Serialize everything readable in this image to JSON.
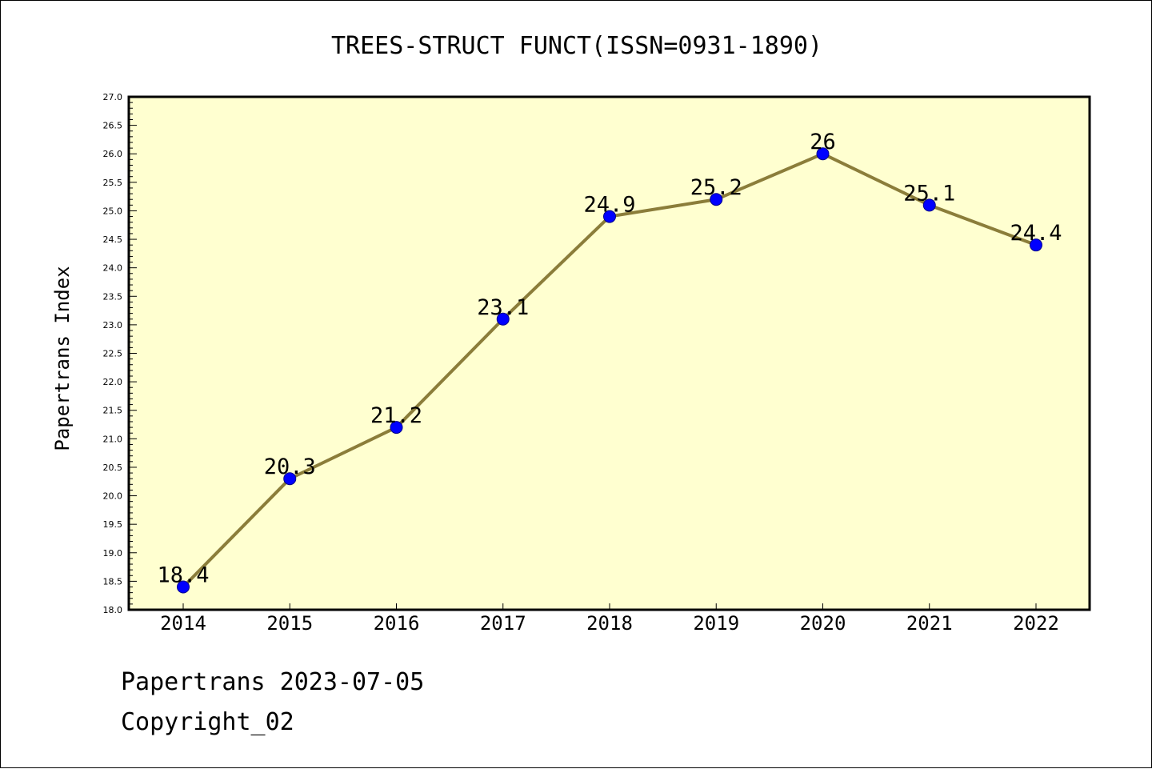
{
  "chart_data": {
    "type": "line",
    "title": "TREES-STRUCT FUNCT(ISSN=0931-1890)",
    "xlabel": "",
    "ylabel": "Papertrans Index",
    "categories": [
      "2014",
      "2015",
      "2016",
      "2017",
      "2018",
      "2019",
      "2020",
      "2021",
      "2022"
    ],
    "values": [
      18.4,
      20.3,
      21.2,
      23.1,
      24.9,
      25.2,
      26,
      25.1,
      24.4
    ],
    "data_labels": [
      "18.4",
      "20.3",
      "21.2",
      "23.1",
      "24.9",
      "25.2",
      "26",
      "25.1",
      "24.4"
    ],
    "ylim": [
      18.0,
      27.0
    ],
    "yticks": [
      "18.0",
      "18.5",
      "19.0",
      "19.5",
      "20.0",
      "20.5",
      "21.0",
      "21.5",
      "22.0",
      "22.5",
      "23.0",
      "23.5",
      "24.0",
      "24.5",
      "25.0",
      "25.5",
      "26.0",
      "26.5",
      "27.0"
    ],
    "grid": false,
    "colors": {
      "plot_background": "#ffffd0",
      "line": "#8b7d3a",
      "marker": "#0000ff"
    }
  },
  "footer": {
    "line1": "Papertrans 2023-07-05",
    "line2": "Copyright_02"
  }
}
